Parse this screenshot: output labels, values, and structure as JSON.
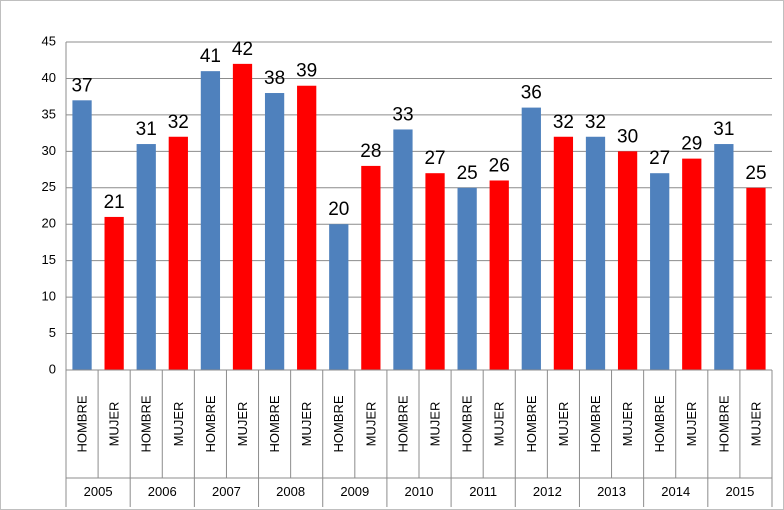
{
  "chart_data": {
    "type": "bar",
    "categories": [
      "2005",
      "2006",
      "2007",
      "2008",
      "2009",
      "2010",
      "2011",
      "2012",
      "2013",
      "2014",
      "2015"
    ],
    "series": [
      {
        "name": "HOMBRE",
        "color": "#4f81bd",
        "values": [
          37,
          31,
          41,
          38,
          20,
          33,
          25,
          36,
          32,
          27,
          31
        ]
      },
      {
        "name": "MUJER",
        "color": "#ff0000",
        "values": [
          21,
          32,
          42,
          39,
          28,
          27,
          26,
          32,
          30,
          29,
          25
        ]
      }
    ],
    "ylim": [
      0,
      45
    ],
    "yticks": [
      0,
      5,
      10,
      15,
      20,
      25,
      30,
      35,
      40,
      45
    ],
    "grid": true
  }
}
